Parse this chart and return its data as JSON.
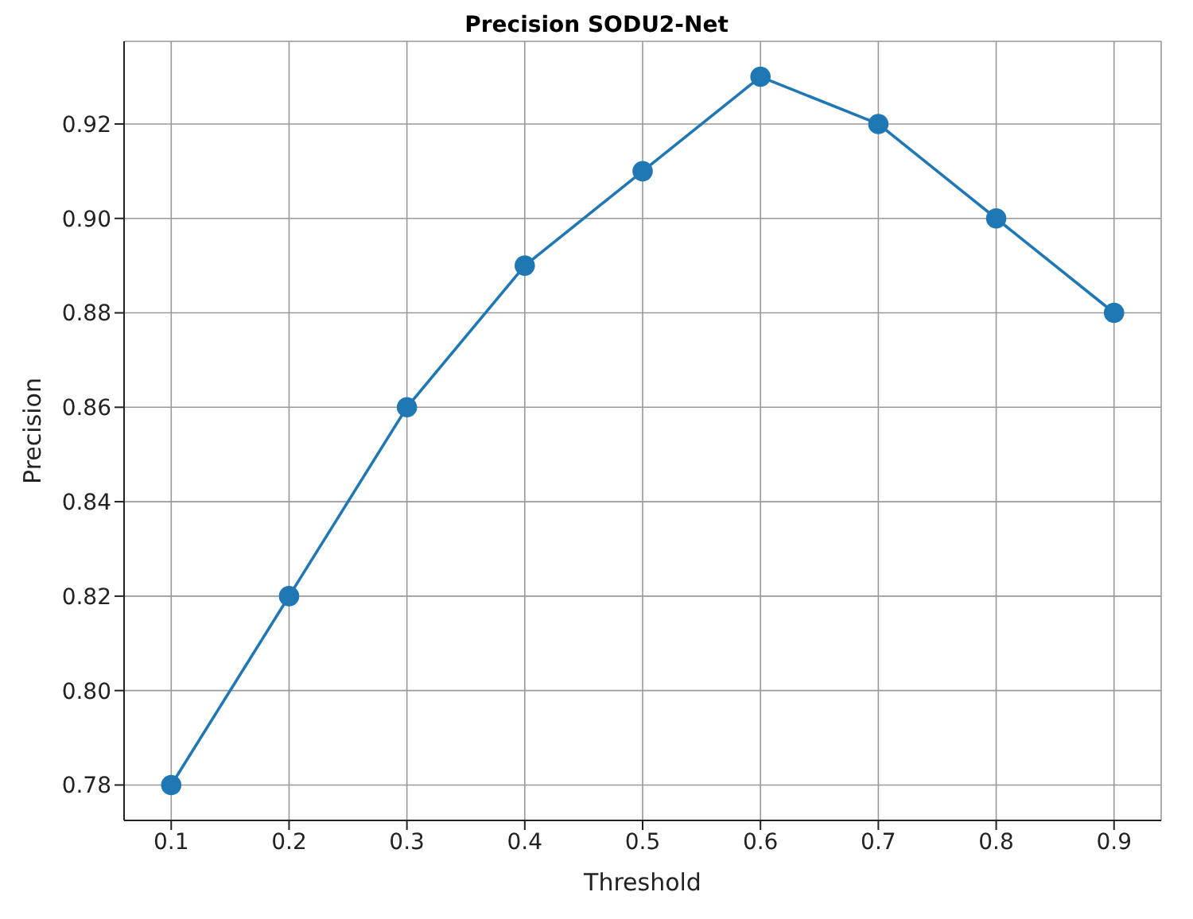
{
  "chart_data": {
    "type": "line",
    "title": "Precision SODU2-Net",
    "xlabel": "Threshold",
    "ylabel": "Precision",
    "x": [
      0.1,
      0.2,
      0.3,
      0.4,
      0.5,
      0.6,
      0.7,
      0.8,
      0.9
    ],
    "series": [
      {
        "color": "#1f77b4",
        "values": [
          0.78,
          0.82,
          0.86,
          0.89,
          0.91,
          0.93,
          0.92,
          0.9,
          0.88
        ]
      }
    ],
    "xlim": [
      0.06,
      0.94
    ],
    "xticks": [
      0.1,
      0.2,
      0.3,
      0.4,
      0.5,
      0.6,
      0.7,
      0.8,
      0.9
    ],
    "ylim": [
      0.7725,
      0.9375
    ],
    "yticks": [
      0.78,
      {
        "value": 0.8,
        "label": "0.80"
      },
      0.82,
      0.84,
      0.86,
      0.88,
      {
        "value": 0.9,
        "label": "0.90"
      },
      0.92
    ],
    "grid": true,
    "marker": "circle",
    "line_style": "solid",
    "legend": false
  }
}
